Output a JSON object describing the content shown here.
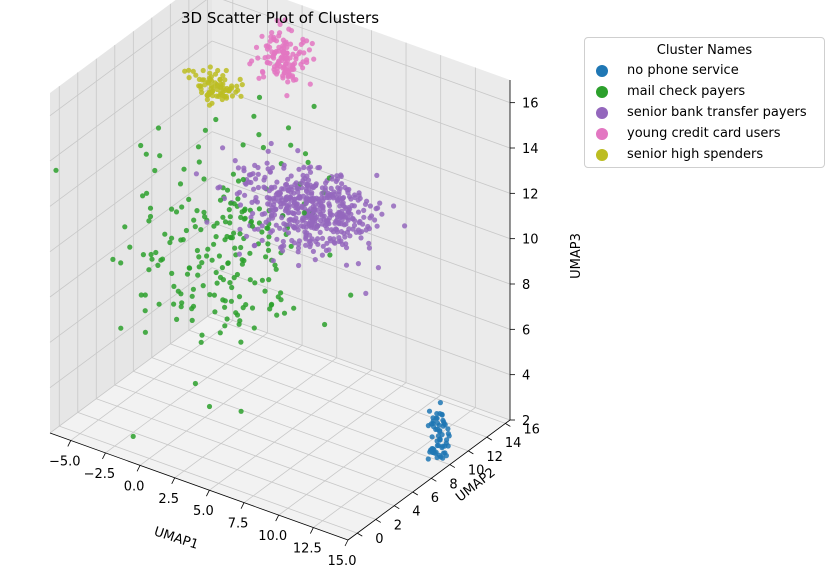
{
  "chart_data": {
    "type": "scatter",
    "title": "3D Scatter Plot of Clusters",
    "xlabel": "UMAP1",
    "ylabel": "UMAP2",
    "zlabel": "UMAP3",
    "xlim": [
      -6.5,
      15
    ],
    "ylim": [
      -1,
      16.5
    ],
    "zlim": [
      2,
      17
    ],
    "x_ticks": [
      "−5.0",
      "−2.5",
      "0.0",
      "2.5",
      "5.0",
      "7.5",
      "10.0",
      "12.5",
      "15.0"
    ],
    "y_ticks": [
      "0",
      "2",
      "4",
      "6",
      "8",
      "10",
      "12",
      "14",
      "16"
    ],
    "z_ticks": [
      "2",
      "4",
      "6",
      "8",
      "10",
      "12",
      "14",
      "16"
    ],
    "grid": true,
    "legend": {
      "title": "Cluster Names",
      "placement": "outside-top-right",
      "entries": [
        {
          "name": "no phone service",
          "color": "#1f77b4"
        },
        {
          "name": "mail check payers",
          "color": "#2ca02c"
        },
        {
          "name": "senior bank transfer payers",
          "color": "#9467bd"
        },
        {
          "name": "young credit card users",
          "color": "#e377c2"
        },
        {
          "name": "senior high spenders",
          "color": "#bcbd22"
        }
      ]
    },
    "series": [
      {
        "name": "no phone service",
        "color": "#1f77b4",
        "center": [
          14.5,
          9.5,
          3.3
        ],
        "spread": [
          0.35,
          0.35,
          0.6
        ],
        "count": 60
      },
      {
        "name": "mail check payers",
        "color": "#2ca02c",
        "center": [
          -2,
          11,
          7.5
        ],
        "spread": [
          2.5,
          3.5,
          2.2
        ],
        "count": 220
      },
      {
        "name": "senior bank transfer payers",
        "color": "#9467bd",
        "center": [
          2.5,
          13.5,
          9.5
        ],
        "spread": [
          2.2,
          1.4,
          0.7
        ],
        "count": 500
      },
      {
        "name": "young credit card users",
        "color": "#e377c2",
        "center": [
          -1,
          16,
          14.5
        ],
        "spread": [
          0.8,
          0.5,
          0.6
        ],
        "count": 130
      },
      {
        "name": "senior high spenders",
        "color": "#bcbd22",
        "center": [
          -4.5,
          14,
          13.2
        ],
        "spread": [
          0.7,
          0.5,
          0.3
        ],
        "count": 80
      }
    ]
  }
}
